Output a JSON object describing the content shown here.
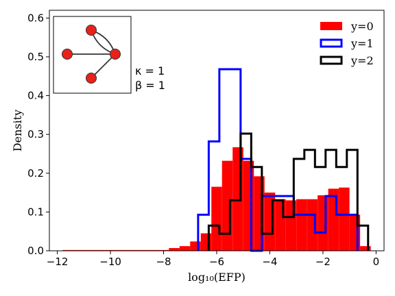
{
  "chart_data": {
    "type": "histogram",
    "xlabel": "log₁₀(EFP)",
    "ylabel": "Density",
    "xlim": [
      -12.3,
      0.3
    ],
    "ylim": [
      0,
      0.62
    ],
    "xticks": [
      -12,
      -10,
      -8,
      -6,
      -4,
      -2,
      0
    ],
    "xtick_labels": [
      "−12",
      "−10",
      "−8",
      "−6",
      "−4",
      "−2",
      "0"
    ],
    "yticks": [
      0.0,
      0.1,
      0.2,
      0.3,
      0.4,
      0.5,
      0.6
    ],
    "ytick_labels": [
      "0.0",
      "0.1",
      "0.2",
      "0.3",
      "0.4",
      "0.5",
      "0.6"
    ],
    "legend_position": "top-right",
    "annotation_lines": [
      "κ = 1",
      "β = 1"
    ],
    "series": [
      {
        "name": "y=0",
        "style": "filled",
        "color": "#ff0000",
        "bin_edges": [
          -11.8,
          -11.4,
          -11.0,
          -10.6,
          -10.2,
          -9.8,
          -9.4,
          -9.0,
          -8.6,
          -8.2,
          -7.8,
          -7.4,
          -7.0,
          -6.6,
          -6.2,
          -5.8,
          -5.4,
          -5.0,
          -4.6,
          -4.2,
          -3.8,
          -3.4,
          -3.0,
          -2.6,
          -2.2,
          -1.8,
          -1.4,
          -1.0,
          -0.6,
          -0.2
        ],
        "values": [
          0.002,
          0.002,
          0.002,
          0.002,
          0.002,
          0.002,
          0.002,
          0.002,
          0.002,
          0.002,
          0.007,
          0.012,
          0.024,
          0.045,
          0.165,
          0.232,
          0.267,
          0.232,
          0.192,
          0.15,
          0.133,
          0.13,
          0.133,
          0.133,
          0.143,
          0.16,
          0.163,
          0.093,
          0.012
        ]
      },
      {
        "name": "y=1",
        "style": "step",
        "color": "#0000ff",
        "bin_edges": [
          -6.7,
          -6.3,
          -5.9,
          -5.1,
          -4.7,
          -4.3,
          -3.1,
          -2.3,
          -1.9,
          -1.5,
          -0.7
        ],
        "values": [
          0.093,
          0.282,
          0.468,
          0.237,
          0.0,
          0.141,
          0.093,
          0.047,
          0.141,
          0.093
        ]
      },
      {
        "name": "y=2",
        "style": "step",
        "color": "#000000",
        "bin_edges": [
          -6.3,
          -5.9,
          -5.5,
          -5.1,
          -4.7,
          -4.3,
          -3.9,
          -3.5,
          -3.1,
          -2.7,
          -2.3,
          -1.9,
          -1.5,
          -1.1,
          -0.7,
          -0.3
        ],
        "values": [
          0.065,
          0.044,
          0.13,
          0.302,
          0.216,
          0.044,
          0.13,
          0.087,
          0.237,
          0.26,
          0.216,
          0.26,
          0.216,
          0.26,
          0.065
        ]
      }
    ],
    "inset_graph": {
      "nodes": [
        "top",
        "left",
        "right",
        "bottom"
      ],
      "edges": [
        [
          "left",
          "right"
        ],
        [
          "top",
          "right"
        ],
        [
          "top",
          "right"
        ],
        [
          "bottom",
          "right"
        ]
      ],
      "node_color": "#e8211b"
    }
  }
}
